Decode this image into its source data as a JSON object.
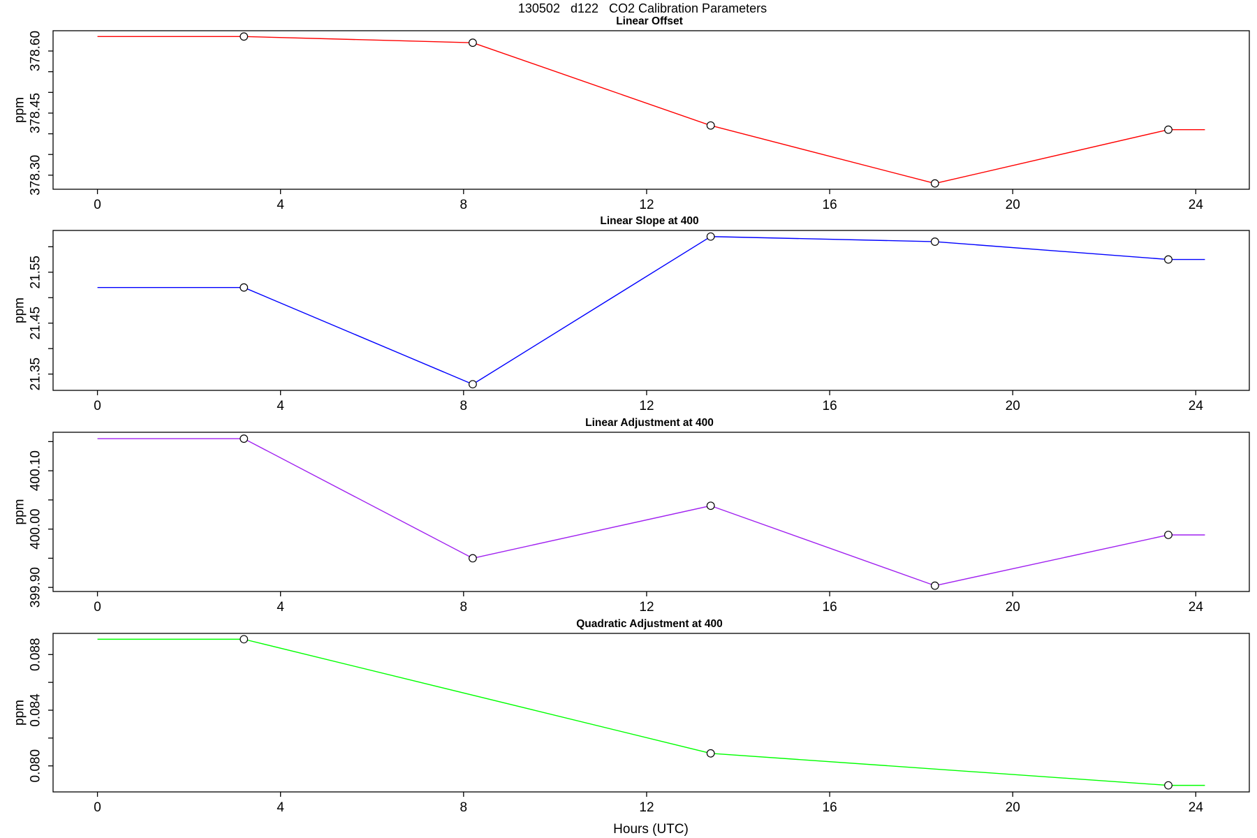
{
  "page": {
    "title": "130502   d122   CO2 Calibration Parameters"
  },
  "x_axis": {
    "label": "Hours (UTC)",
    "range": [
      0,
      24.2
    ],
    "ticks": [
      {
        "value": 0,
        "label": "0"
      },
      {
        "value": 4,
        "label": "4"
      },
      {
        "value": 8,
        "label": "8"
      },
      {
        "value": 12,
        "label": "12"
      },
      {
        "value": 16,
        "label": "16"
      },
      {
        "value": 20,
        "label": "20"
      },
      {
        "value": 24,
        "label": "24"
      }
    ]
  },
  "chart_data": [
    {
      "type": "line",
      "title": "Linear Offset",
      "ylabel": "ppm",
      "color": "#ff0000",
      "ylim": [
        378.266,
        378.649
      ],
      "x": [
        0,
        3.2,
        8.2,
        13.4,
        18.3,
        23.4,
        24.2
      ],
      "y": [
        378.635,
        378.635,
        378.62,
        378.42,
        378.28,
        378.41,
        378.41
      ],
      "markers": {
        "x": [
          3.2,
          8.2,
          13.4,
          18.3,
          23.4
        ],
        "y": [
          378.635,
          378.62,
          378.42,
          378.28,
          378.41
        ]
      },
      "yticks": [
        {
          "value": 378.3,
          "label": "378.30"
        },
        {
          "value": 378.35,
          "label": ""
        },
        {
          "value": 378.4,
          "label": ""
        },
        {
          "value": 378.45,
          "label": "378.45"
        },
        {
          "value": 378.5,
          "label": ""
        },
        {
          "value": 378.55,
          "label": ""
        },
        {
          "value": 378.6,
          "label": "378.60"
        }
      ]
    },
    {
      "type": "line",
      "title": "Linear Slope at 400",
      "ylabel": "ppm",
      "color": "#0000ff",
      "ylim": [
        21.318,
        21.632
      ],
      "x": [
        0,
        3.2,
        8.2,
        13.4,
        18.3,
        23.4,
        24.2
      ],
      "y": [
        21.52,
        21.52,
        21.33,
        21.62,
        21.61,
        21.575,
        21.575
      ],
      "markers": {
        "x": [
          3.2,
          8.2,
          13.4,
          18.3,
          23.4
        ],
        "y": [
          21.52,
          21.33,
          21.62,
          21.61,
          21.575
        ]
      },
      "yticks": [
        {
          "value": 21.35,
          "label": "21.35"
        },
        {
          "value": 21.4,
          "label": ""
        },
        {
          "value": 21.45,
          "label": "21.45"
        },
        {
          "value": 21.5,
          "label": ""
        },
        {
          "value": 21.55,
          "label": "21.55"
        },
        {
          "value": 21.6,
          "label": ""
        }
      ]
    },
    {
      "type": "line",
      "title": "Linear Adjustment at 400",
      "ylabel": "ppm",
      "color": "#a020f0",
      "ylim": [
        399.893,
        400.166
      ],
      "x": [
        0,
        3.2,
        8.2,
        13.4,
        18.3,
        23.4,
        24.2
      ],
      "y": [
        400.155,
        400.155,
        399.95,
        400.04,
        399.903,
        399.99,
        399.99
      ],
      "markers": {
        "x": [
          3.2,
          8.2,
          13.4,
          18.3,
          23.4
        ],
        "y": [
          400.155,
          399.95,
          400.04,
          399.903,
          399.99
        ]
      },
      "yticks": [
        {
          "value": 399.9,
          "label": "399.90"
        },
        {
          "value": 399.95,
          "label": ""
        },
        {
          "value": 400.0,
          "label": "400.00"
        },
        {
          "value": 400.05,
          "label": ""
        },
        {
          "value": 400.1,
          "label": "400.10"
        },
        {
          "value": 400.15,
          "label": ""
        }
      ]
    },
    {
      "type": "line",
      "title": "Quadratic Adjustment at 400",
      "ylabel": "ppm",
      "color": "#00ff00",
      "ylim": [
        0.07813,
        0.08952
      ],
      "x": [
        0,
        3.2,
        13.4,
        23.4,
        24.2
      ],
      "y": [
        0.0891,
        0.0891,
        0.0809,
        0.0786,
        0.0786
      ],
      "markers": {
        "x": [
          3.2,
          13.4,
          23.4
        ],
        "y": [
          0.0891,
          0.0809,
          0.0786
        ]
      },
      "yticks": [
        {
          "value": 0.08,
          "label": "0.080"
        },
        {
          "value": 0.082,
          "label": ""
        },
        {
          "value": 0.084,
          "label": "0.084"
        },
        {
          "value": 0.086,
          "label": ""
        },
        {
          "value": 0.088,
          "label": "0.088"
        }
      ]
    }
  ]
}
